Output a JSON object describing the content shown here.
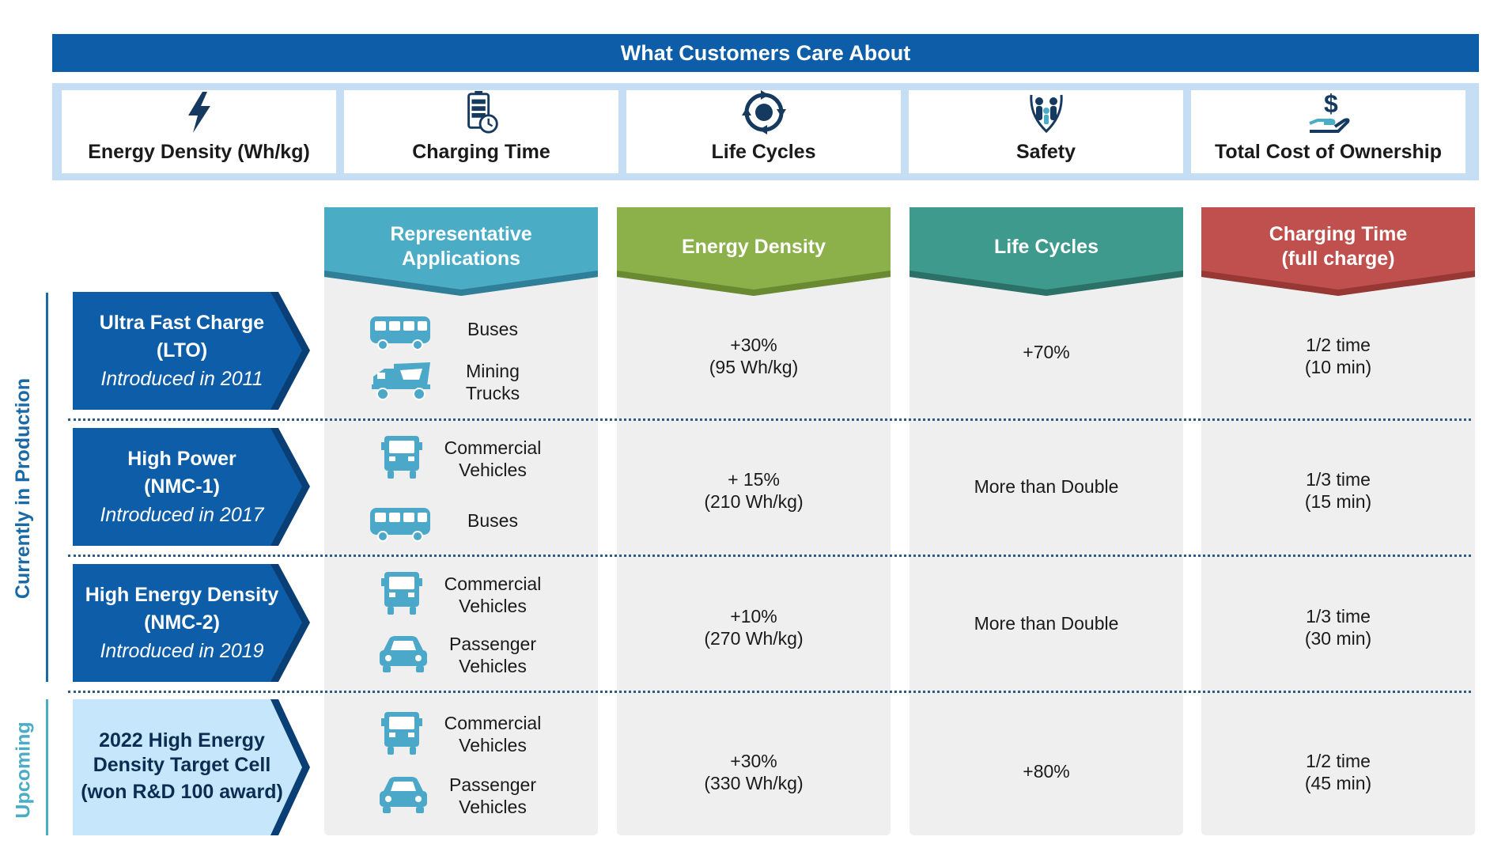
{
  "banner": {
    "title": "What Customers Care About"
  },
  "customer_cares": [
    {
      "label": "Energy Density (Wh/kg)",
      "icon": "lightning-bolt-icon"
    },
    {
      "label": "Charging Time",
      "icon": "battery-clock-icon"
    },
    {
      "label": "Life Cycles",
      "icon": "cycle-arrows-icon"
    },
    {
      "label": "Safety",
      "icon": "family-shield-icon"
    },
    {
      "label": "Total Cost of Ownership",
      "icon": "money-hand-icon"
    }
  ],
  "columns": [
    {
      "line1": "Representative",
      "line2": "Applications",
      "color": "#4bacc6"
    },
    {
      "line1": "Energy Density",
      "line2": "",
      "color": "#8cb04a"
    },
    {
      "line1": "Life Cycles",
      "line2": "",
      "color": "#3f9a8e"
    },
    {
      "line1": "Charging Time",
      "line2": "(full charge)",
      "color": "#c0504d"
    }
  ],
  "side_labels": {
    "production": "Currently in Production",
    "upcoming": "Upcoming"
  },
  "rows": [
    {
      "title1": "Ultra Fast Charge",
      "title2": "(LTO)",
      "subtitle": "Introduced in 2011",
      "apps": [
        {
          "icon": "bus-icon",
          "line1": "Buses",
          "line2": ""
        },
        {
          "icon": "mining-truck-icon",
          "line1": "Mining",
          "line2": "Trucks"
        }
      ],
      "energy1": "+30%",
      "energy2": "(95 Wh/kg)",
      "life": "+70%",
      "charge1": "1/2 time",
      "charge2": "(10 min)"
    },
    {
      "title1": "High Power",
      "title2": "(NMC-1)",
      "subtitle": "Introduced in 2017",
      "apps": [
        {
          "icon": "commercial-truck-icon",
          "line1": "Commercial",
          "line2": "Vehicles"
        },
        {
          "icon": "bus-icon",
          "line1": "Buses",
          "line2": ""
        }
      ],
      "energy1": "+ 15%",
      "energy2": "(210 Wh/kg)",
      "life": "More than Double",
      "charge1": "1/3 time",
      "charge2": "(15 min)"
    },
    {
      "title1": "High Energy Density",
      "title2": "(NMC-2)",
      "subtitle": "Introduced in 2019",
      "apps": [
        {
          "icon": "commercial-truck-icon",
          "line1": "Commercial",
          "line2": "Vehicles"
        },
        {
          "icon": "car-icon",
          "line1": "Passenger",
          "line2": "Vehicles"
        }
      ],
      "energy1": "+10%",
      "energy2": "(270 Wh/kg)",
      "life": "More than Double",
      "charge1": "1/3 time",
      "charge2": "(30 min)"
    },
    {
      "title1": "2022 High Energy",
      "title2": "Density Target Cell",
      "subtitle": "(won R&D 100 award)",
      "apps": [
        {
          "icon": "commercial-truck-icon",
          "line1": "Commercial",
          "line2": "Vehicles"
        },
        {
          "icon": "car-icon",
          "line1": "Passenger",
          "line2": "Vehicles"
        }
      ],
      "energy1": "+30%",
      "energy2": "(330 Wh/kg)",
      "life": "+80%",
      "charge1": "1/2 time",
      "charge2": "(45 min)"
    }
  ],
  "colors": {
    "banner": "#0d5da8",
    "tag_dark": "#0d5da8",
    "tag_light": "#c6e6fb",
    "tag_edge": "#0a3f75",
    "icon_dark": "#163a5f",
    "icon_app": "#4ba8c8",
    "side_dark": "#1b6aa6",
    "side_light": "#4bacc6"
  }
}
